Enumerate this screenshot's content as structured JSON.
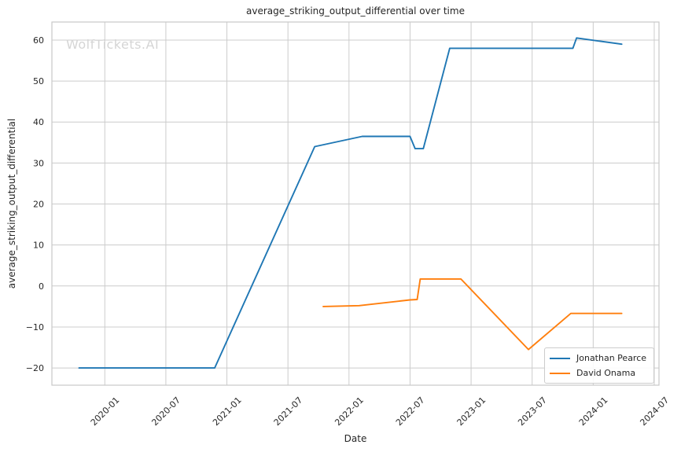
{
  "chart_data": {
    "type": "line",
    "title": "average_striking_output_differential over time",
    "xlabel": "Date",
    "ylabel": "average_striking_output_differential",
    "watermark": "WolfTickets.AI",
    "grid": true,
    "legend_position": "lower right",
    "background_color": "#ffffff",
    "grid_color": "#cccccc",
    "spine_color": "#c8c8c8",
    "text_color": "#262626",
    "watermark_color": "#d5d5d5",
    "xlim": [
      "2019-07-25",
      "2024-07-15"
    ],
    "ylim": [
      -24.2,
      64.4
    ],
    "x_ticks": [
      "2020-01",
      "2020-07",
      "2021-01",
      "2021-07",
      "2022-01",
      "2022-07",
      "2023-01",
      "2023-07",
      "2024-01",
      "2024-07"
    ],
    "y_ticks": [
      {
        "value": -20,
        "label": "−20"
      },
      {
        "value": -10,
        "label": "−10"
      },
      {
        "value": 0,
        "label": "0"
      },
      {
        "value": 10,
        "label": "10"
      },
      {
        "value": 20,
        "label": "20"
      },
      {
        "value": 30,
        "label": "30"
      },
      {
        "value": 40,
        "label": "40"
      },
      {
        "value": 50,
        "label": "50"
      },
      {
        "value": 60,
        "label": "60"
      }
    ],
    "series": [
      {
        "name": "Jonathan Pearce",
        "color": "#1f77b4",
        "points": [
          [
            "2019-10-15",
            -20
          ],
          [
            "2020-11-25",
            -20
          ],
          [
            "2021-09-20",
            34
          ],
          [
            "2022-02-10",
            36.5
          ],
          [
            "2022-07-01",
            36.5
          ],
          [
            "2022-07-16",
            33.5
          ],
          [
            "2022-08-10",
            33.5
          ],
          [
            "2022-10-28",
            58
          ],
          [
            "2023-11-01",
            58
          ],
          [
            "2023-11-12",
            60.5
          ],
          [
            "2024-03-25",
            59
          ]
        ]
      },
      {
        "name": "David Onama",
        "color": "#ff7f0e",
        "points": [
          [
            "2021-10-15",
            -5
          ],
          [
            "2022-02-01",
            -4.8
          ],
          [
            "2022-07-01",
            -3.4
          ],
          [
            "2022-07-22",
            -3.3
          ],
          [
            "2022-08-01",
            1.7
          ],
          [
            "2022-12-01",
            1.7
          ],
          [
            "2023-06-20",
            -15.5
          ],
          [
            "2023-10-25",
            -6.7
          ],
          [
            "2024-03-25",
            -6.7
          ]
        ]
      }
    ]
  }
}
